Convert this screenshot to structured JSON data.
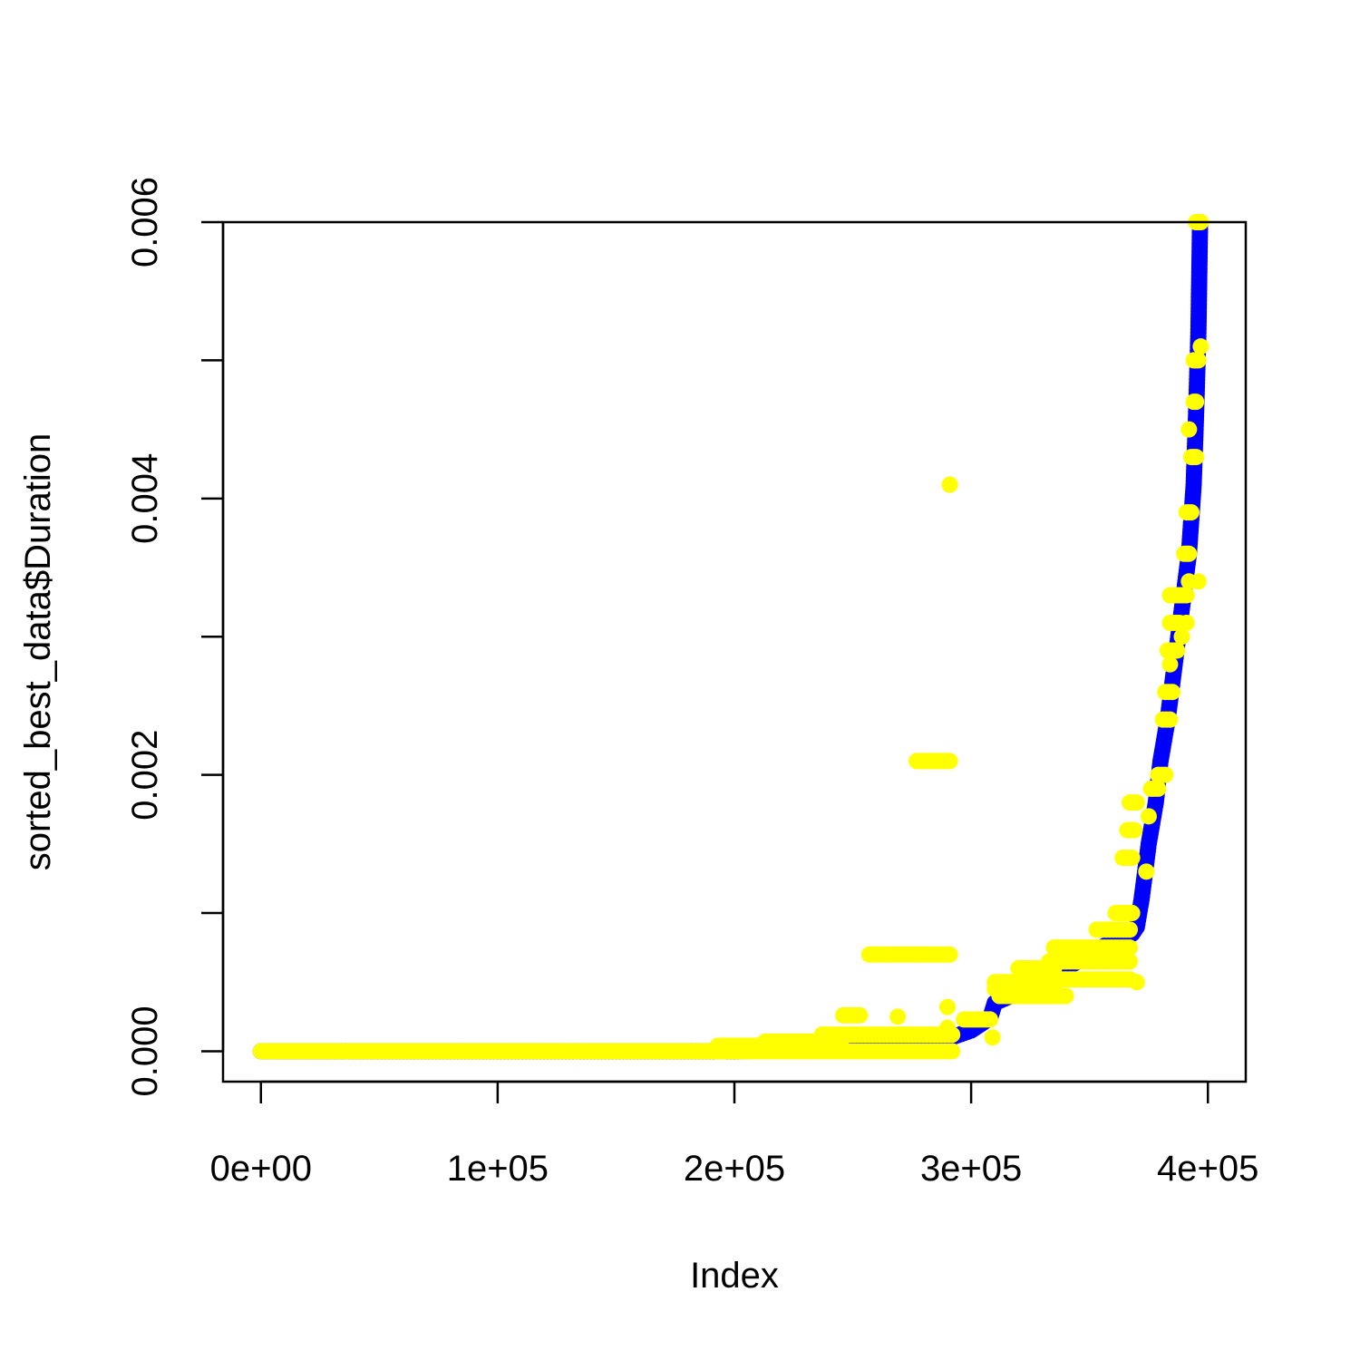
{
  "chart_data": {
    "type": "scatter",
    "title": "",
    "xlabel": "Index",
    "ylabel": "sorted_best_data$Duration",
    "xlim": [
      -16000,
      416000
    ],
    "ylim": [
      -0.00022,
      0.006
    ],
    "x_ticks": [
      0,
      100000,
      200000,
      300000,
      400000
    ],
    "x_tick_labels": [
      "0e+00",
      "1e+05",
      "2e+05",
      "3e+05",
      "4e+05"
    ],
    "y_ticks": [
      0.0,
      0.001,
      0.002,
      0.003,
      0.004,
      0.005,
      0.006
    ],
    "y_tick_labels": [
      "0.000",
      "",
      "0.002",
      "",
      "0.004",
      "",
      "0.006"
    ],
    "grid": false,
    "legend": "none",
    "colors": {
      "sorted": "#0000ff",
      "overlay": "#ffff00",
      "axis": "#000000"
    },
    "series": [
      {
        "color": "#0000ff",
        "style": "points",
        "x": [
          0,
          100000,
          200000,
          280000,
          300000,
          308000,
          310000,
          330000,
          350000,
          360000,
          368000,
          370000,
          372000,
          375000,
          378000,
          380000,
          383000,
          386000,
          389000,
          392000,
          394000,
          395000,
          396000,
          396700
        ],
        "y": [
          0.0,
          0.0,
          0.0,
          3e-05,
          0.00015,
          0.00024,
          0.00035,
          0.0005,
          0.0007,
          0.0008,
          0.00085,
          0.0009,
          0.0011,
          0.0015,
          0.0018,
          0.0021,
          0.0024,
          0.0028,
          0.0032,
          0.0036,
          0.0041,
          0.0046,
          0.0052,
          0.006
        ]
      },
      {
        "color": "#ffff00",
        "style": "points",
        "segments": [
          {
            "x": [
              0,
              195000
            ],
            "y": 0.0
          },
          {
            "x": [
              193000,
              292000
            ],
            "y": 0.0
          },
          {
            "x": [
              193000,
              225000
            ],
            "y": 4e-05
          },
          {
            "x": [
              213000,
              245000
            ],
            "y": 7e-05
          },
          {
            "x": [
              237000,
              292000
            ],
            "y": 0.00012
          },
          {
            "x": [
              246000,
              253000
            ],
            "y": 0.00026
          },
          {
            "x": [
              257000,
              291000
            ],
            "y": 0.0007
          },
          {
            "x": [
              277000,
              291000
            ],
            "y": 0.0021
          },
          {
            "x": [
              297000,
              308000
            ],
            "y": 0.00023
          },
          {
            "x": [
              310000,
              335000
            ],
            "y": 0.00045
          },
          {
            "x": [
              310000,
              330000
            ],
            "y": 0.0005
          },
          {
            "x": [
              312000,
              340000
            ],
            "y": 0.0004
          },
          {
            "x": [
              320000,
              335000
            ],
            "y": 0.0006
          },
          {
            "x": [
              325000,
              367000
            ],
            "y": 0.00052
          },
          {
            "x": [
              333000,
              367000
            ],
            "y": 0.00065
          },
          {
            "x": [
              335000,
              367000
            ],
            "y": 0.00075
          },
          {
            "x": [
              353000,
              367000
            ],
            "y": 0.00088
          },
          {
            "x": [
              361000,
              368000
            ],
            "y": 0.001
          },
          {
            "x": [
              364000,
              368000
            ],
            "y": 0.0014
          },
          {
            "x": [
              366000,
              369000
            ],
            "y": 0.0016
          },
          {
            "x": [
              367000,
              370000
            ],
            "y": 0.0018
          },
          {
            "x": [
              376000,
              379000
            ],
            "y": 0.0019
          },
          {
            "x": [
              379000,
              382000
            ],
            "y": 0.002
          },
          {
            "x": [
              381000,
              384000
            ],
            "y": 0.0024
          },
          {
            "x": [
              382000,
              385000
            ],
            "y": 0.0026
          },
          {
            "x": [
              383000,
              387000
            ],
            "y": 0.0029
          },
          {
            "x": [
              384000,
              388000
            ],
            "y": 0.0031
          },
          {
            "x": [
              384000,
              391000
            ],
            "y": 0.0033
          },
          {
            "x": [
              390000,
              392000
            ],
            "y": 0.0036
          },
          {
            "x": [
              391000,
              393000
            ],
            "y": 0.0039
          },
          {
            "x": [
              393000,
              395000
            ],
            "y": 0.0043
          },
          {
            "x": [
              394000,
              395000
            ],
            "y": 0.0047
          },
          {
            "x": [
              394000,
              396000
            ],
            "y": 0.005
          },
          {
            "x": [
              395000,
              397000
            ],
            "y": 0.006
          }
        ],
        "points": [
          {
            "x": 269000,
            "y": 0.00025
          },
          {
            "x": 290000,
            "y": 0.00017
          },
          {
            "x": 290000,
            "y": 0.00032
          },
          {
            "x": 291000,
            "y": 0.0041
          },
          {
            "x": 291000,
            "y": 0.0041
          },
          {
            "x": 309000,
            "y": 0.0001
          },
          {
            "x": 370000,
            "y": 0.0005
          },
          {
            "x": 374000,
            "y": 0.0013
          },
          {
            "x": 375000,
            "y": 0.0017
          },
          {
            "x": 384000,
            "y": 0.0028
          },
          {
            "x": 389000,
            "y": 0.003
          },
          {
            "x": 391000,
            "y": 0.0031
          },
          {
            "x": 392000,
            "y": 0.0034
          },
          {
            "x": 392000,
            "y": 0.0045
          },
          {
            "x": 396000,
            "y": 0.0034
          },
          {
            "x": 397000,
            "y": 0.0051
          }
        ]
      }
    ]
  }
}
